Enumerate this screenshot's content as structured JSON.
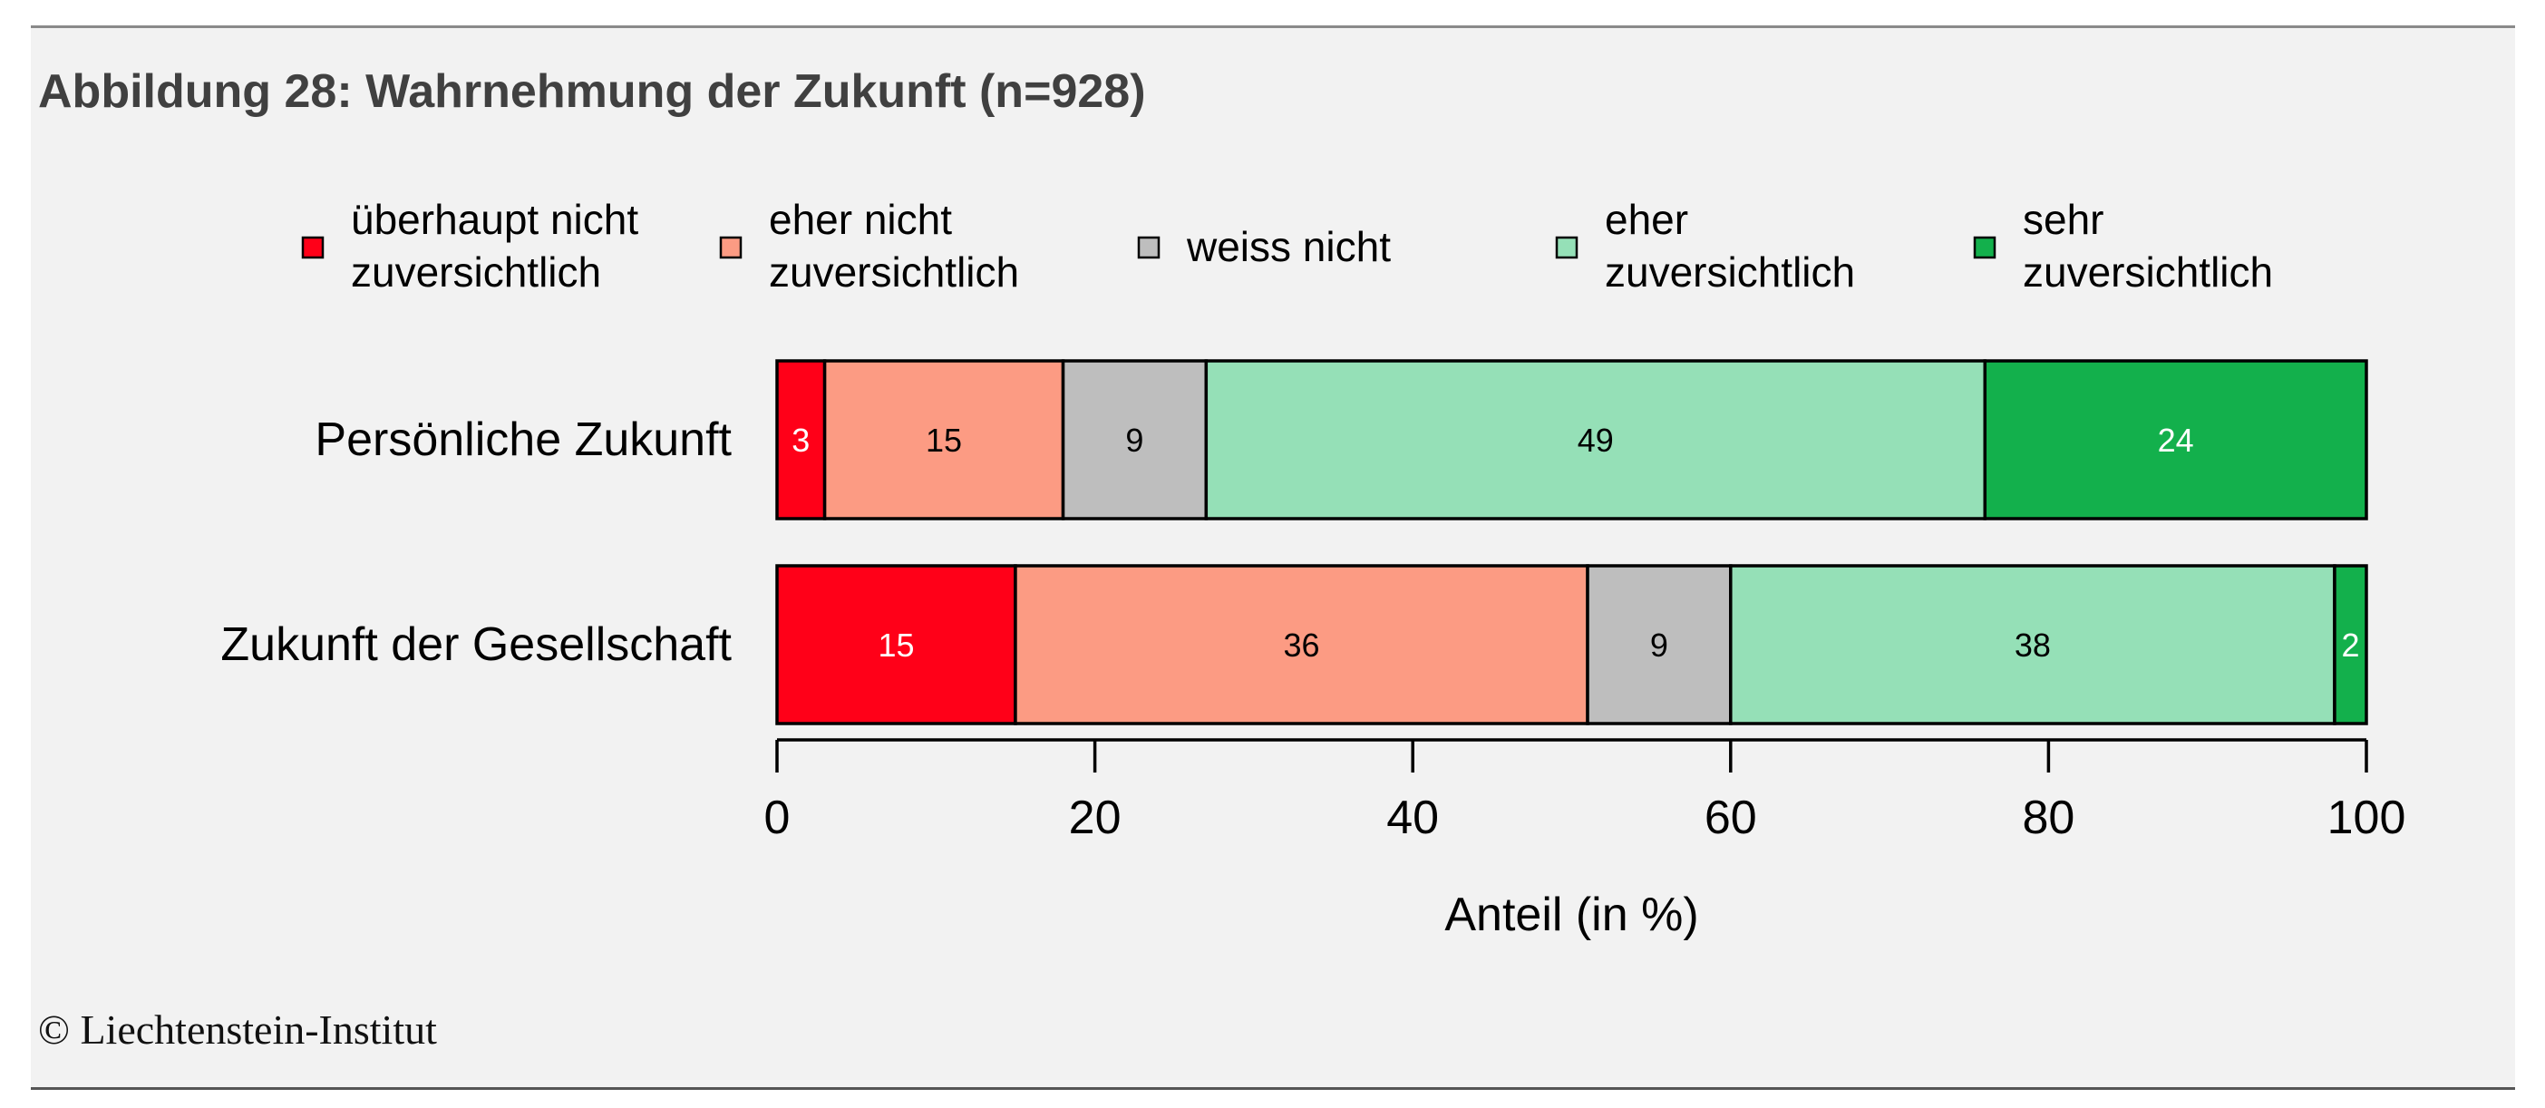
{
  "figure": {
    "title": "Abbildung 28: Wahrnehmung der Zukunft (n=928)",
    "copyright": "© Liechtenstein-Institut"
  },
  "chart_data": {
    "type": "bar",
    "orientation": "horizontal",
    "stacked": true,
    "categories": [
      "Persönliche Zukunft",
      "Zukunft der Gesellschaft"
    ],
    "series": [
      {
        "name": "überhaupt nicht zuversichtlich",
        "legend_lines": [
          "überhaupt nicht",
          "zuversichtlich"
        ],
        "color": "#ff0018",
        "label_color": "#ffffff",
        "values": [
          3,
          15
        ]
      },
      {
        "name": "eher nicht zuversichtlich",
        "legend_lines": [
          "eher nicht",
          "zuversichtlich"
        ],
        "color": "#fc9b83",
        "label_color": "#000000",
        "values": [
          15,
          36
        ]
      },
      {
        "name": "weiss nicht",
        "legend_lines": [
          "weiss nicht"
        ],
        "color": "#bebebe",
        "label_color": "#000000",
        "values": [
          9,
          9
        ]
      },
      {
        "name": "eher zuversichtlich",
        "legend_lines": [
          "eher",
          "zuversichtlich"
        ],
        "color": "#95e0b7",
        "label_color": "#000000",
        "values": [
          49,
          38
        ]
      },
      {
        "name": "sehr zuversichtlich",
        "legend_lines": [
          "sehr",
          "zuversichtlich"
        ],
        "color": "#13b04c",
        "label_color": "#ffffff",
        "values": [
          24,
          2
        ]
      }
    ],
    "xlabel": "Anteil (in %)",
    "xlim": [
      0,
      100
    ],
    "xticks": [
      0,
      20,
      40,
      60,
      80,
      100
    ],
    "legend_position": "top",
    "grid": false
  }
}
